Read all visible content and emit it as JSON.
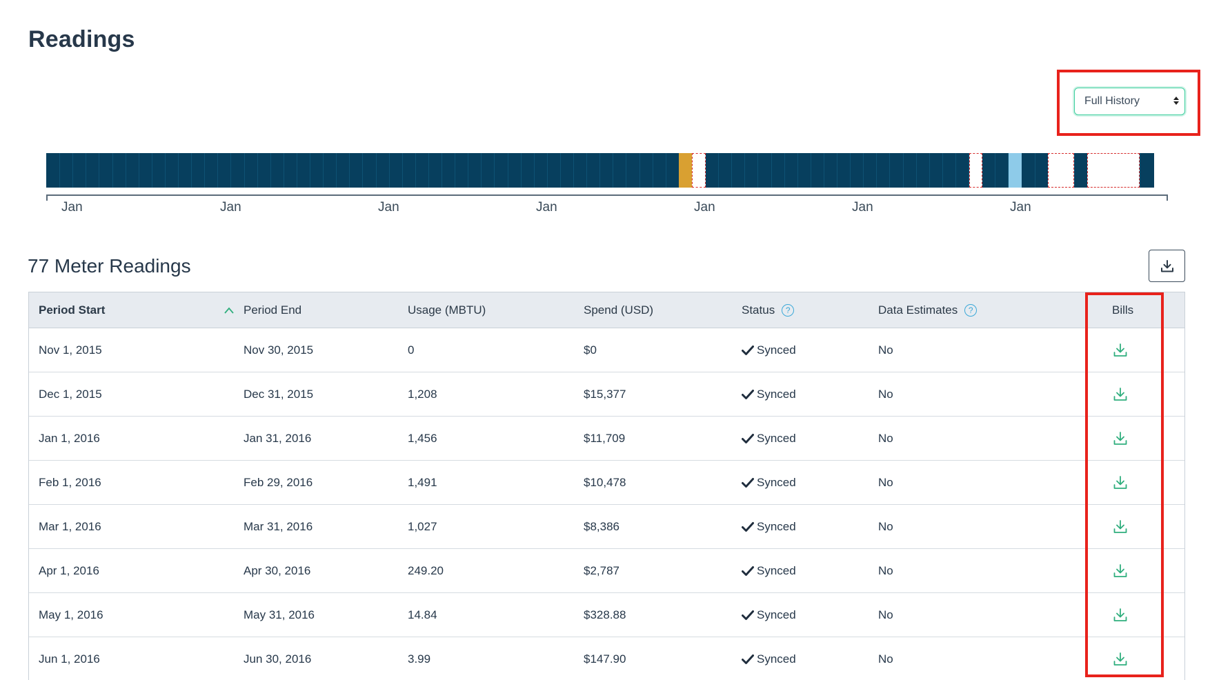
{
  "page": {
    "title": "Readings"
  },
  "history_select": {
    "value": "Full History"
  },
  "timeline": {
    "colors": {
      "base": "#073f5e",
      "gold": "#d9a031",
      "light": "#8ecbe9",
      "missing_border": "#d62b2b"
    },
    "tick_labels": [
      "Jan",
      "Jan",
      "Jan",
      "Jan",
      "Jan",
      "Jan",
      "Jan"
    ]
  },
  "readings": {
    "title": "77 Meter Readings",
    "columns": {
      "period_start": "Period Start",
      "period_end": "Period End",
      "usage": "Usage (MBTU)",
      "spend": "Spend (USD)",
      "status": "Status",
      "data_estimates": "Data Estimates",
      "bills": "Bills"
    },
    "rows": [
      {
        "start": "Nov 1, 2015",
        "end": "Nov 30, 2015",
        "usage": "0",
        "spend": "$0",
        "status": "Synced",
        "estimates": "No"
      },
      {
        "start": "Dec 1, 2015",
        "end": "Dec 31, 2015",
        "usage": "1,208",
        "spend": "$15,377",
        "status": "Synced",
        "estimates": "No"
      },
      {
        "start": "Jan 1, 2016",
        "end": "Jan 31, 2016",
        "usage": "1,456",
        "spend": "$11,709",
        "status": "Synced",
        "estimates": "No"
      },
      {
        "start": "Feb 1, 2016",
        "end": "Feb 29, 2016",
        "usage": "1,491",
        "spend": "$10,478",
        "status": "Synced",
        "estimates": "No"
      },
      {
        "start": "Mar 1, 2016",
        "end": "Mar 31, 2016",
        "usage": "1,027",
        "spend": "$8,386",
        "status": "Synced",
        "estimates": "No"
      },
      {
        "start": "Apr 1, 2016",
        "end": "Apr 30, 2016",
        "usage": "249.20",
        "spend": "$2,787",
        "status": "Synced",
        "estimates": "No"
      },
      {
        "start": "May 1, 2016",
        "end": "May 31, 2016",
        "usage": "14.84",
        "spend": "$328.88",
        "status": "Synced",
        "estimates": "No"
      },
      {
        "start": "Jun 1, 2016",
        "end": "Jun 30, 2016",
        "usage": "3.99",
        "spend": "$147.90",
        "status": "Synced",
        "estimates": "No"
      }
    ]
  },
  "colors": {
    "highlight": "#e8221c",
    "accent_green": "#3ecf9e",
    "help_blue": "#3aa8d8"
  }
}
